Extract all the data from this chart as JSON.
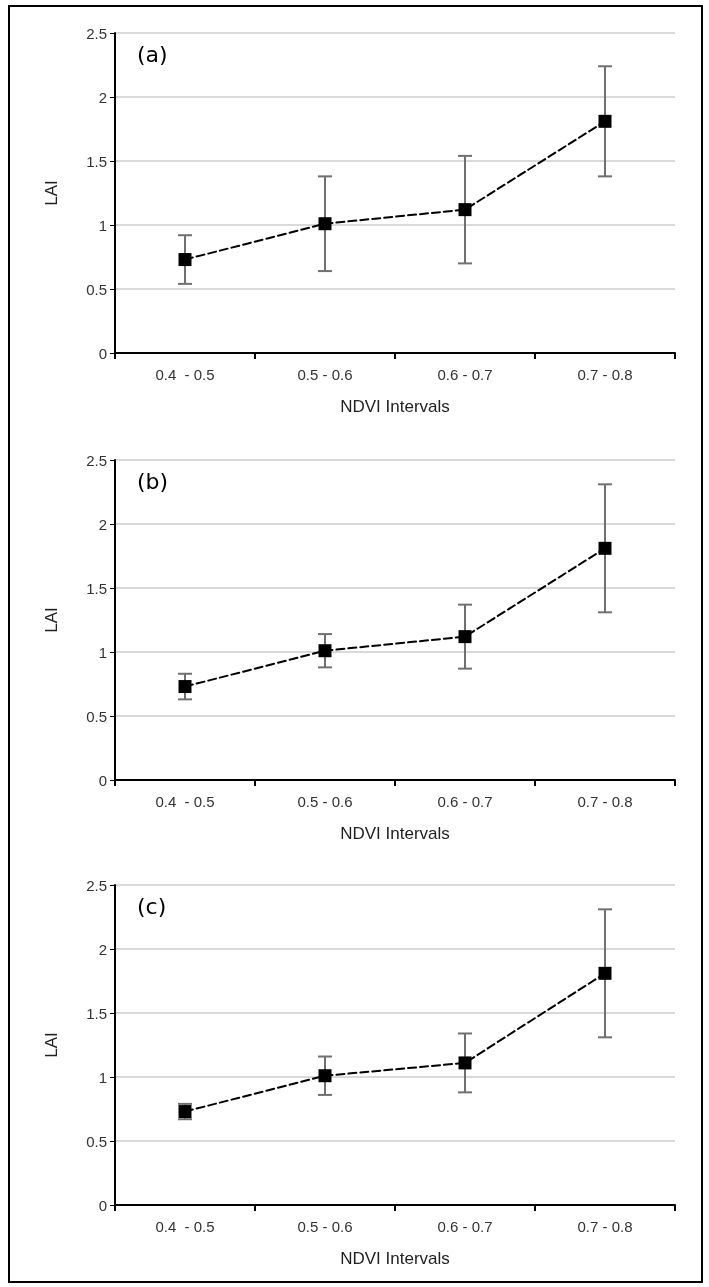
{
  "chart_data": [
    {
      "type": "line",
      "annotations": [
        "(a)"
      ],
      "xlabel": "NDVI Intervals",
      "ylabel": "LAI",
      "categories": [
        "0.4  - 0.5",
        "0.5 - 0.6",
        "0.6 - 0.7",
        "0.7 - 0.8"
      ],
      "series": [
        {
          "color": "#000000",
          "values": [
            0.73,
            1.01,
            1.12,
            1.81
          ],
          "errors": [
            0.19,
            0.37,
            0.42,
            0.43
          ]
        }
      ],
      "ylim": [
        0,
        2.5
      ],
      "yticks": [
        0,
        0.5,
        1,
        1.5,
        2,
        2.5
      ],
      "grid": "y",
      "marker": "square",
      "line_style": "dashed"
    },
    {
      "type": "line",
      "annotations": [
        "(b)"
      ],
      "xlabel": "NDVI Intervals",
      "ylabel": "LAI",
      "categories": [
        "0.4  - 0.5",
        "0.5 - 0.6",
        "0.6 - 0.7",
        "0.7 - 0.8"
      ],
      "series": [
        {
          "color": "#000000",
          "values": [
            0.73,
            1.01,
            1.12,
            1.81
          ],
          "errors": [
            0.1,
            0.13,
            0.25,
            0.5
          ]
        }
      ],
      "ylim": [
        0,
        2.5
      ],
      "yticks": [
        0,
        0.5,
        1,
        1.5,
        2,
        2.5
      ],
      "grid": "y",
      "marker": "square",
      "line_style": "dashed"
    },
    {
      "type": "line",
      "annotations": [
        "(c)"
      ],
      "xlabel": "NDVI Intervals",
      "ylabel": "LAI",
      "categories": [
        "0.4  - 0.5",
        "0.5 - 0.6",
        "0.6 - 0.7",
        "0.7 - 0.8"
      ],
      "series": [
        {
          "color": "#000000",
          "values": [
            0.73,
            1.01,
            1.11,
            1.81
          ],
          "errors": [
            0.06,
            0.15,
            0.23,
            0.5
          ]
        }
      ],
      "ylim": [
        0,
        2.5
      ],
      "yticks": [
        0,
        0.5,
        1,
        1.5,
        2,
        2.5
      ],
      "grid": "y",
      "marker": "square",
      "line_style": "dashed"
    }
  ]
}
